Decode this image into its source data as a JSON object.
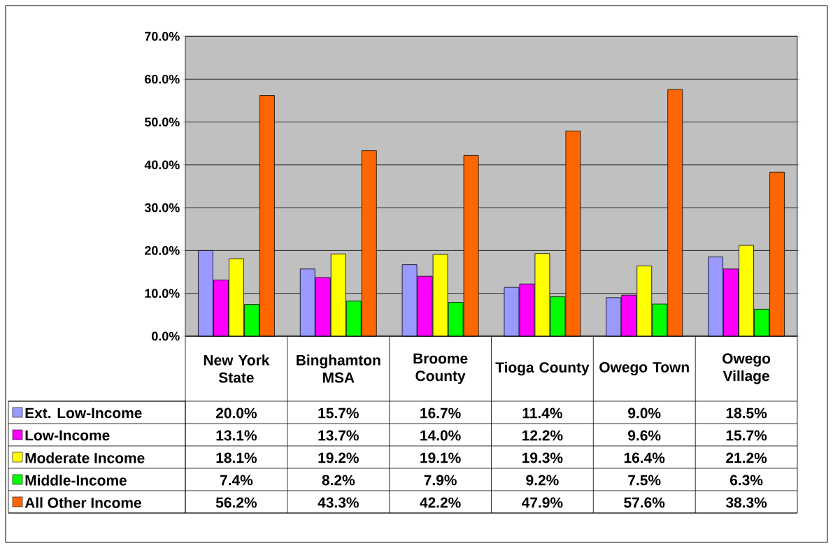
{
  "chart_data": {
    "type": "bar",
    "categories": [
      "New York State",
      "Binghamton MSA",
      "Broome County",
      "Tioga County",
      "Owego Town",
      "Owego Village"
    ],
    "series": [
      {
        "name": "Ext. Low-Income",
        "color": "#9999ff",
        "values": [
          20.0,
          15.7,
          16.7,
          11.4,
          9.0,
          18.5
        ],
        "value_labels": [
          "20.0%",
          "15.7%",
          "16.7%",
          "11.4%",
          "9.0%",
          "18.5%"
        ]
      },
      {
        "name": "Low-Income",
        "color": "#ff00ff",
        "values": [
          13.1,
          13.7,
          14.0,
          12.2,
          9.6,
          15.7
        ],
        "value_labels": [
          "13.1%",
          "13.7%",
          "14.0%",
          "12.2%",
          "9.6%",
          "15.7%"
        ]
      },
      {
        "name": "Moderate Income",
        "color": "#ffff00",
        "values": [
          18.1,
          19.2,
          19.1,
          19.3,
          16.4,
          21.2
        ],
        "value_labels": [
          "18.1%",
          "19.2%",
          "19.1%",
          "19.3%",
          "16.4%",
          "21.2%"
        ]
      },
      {
        "name": "Middle-Income",
        "color": "#00ff00",
        "values": [
          7.4,
          8.2,
          7.9,
          9.2,
          7.5,
          6.3
        ],
        "value_labels": [
          "7.4%",
          "8.2%",
          "7.9%",
          "9.2%",
          "7.5%",
          "6.3%"
        ]
      },
      {
        "name": "All Other Income",
        "color": "#ff6600",
        "values": [
          56.2,
          43.3,
          42.2,
          47.9,
          57.6,
          38.3
        ],
        "value_labels": [
          "56.2%",
          "43.3%",
          "42.2%",
          "47.9%",
          "57.6%",
          "38.3%"
        ]
      }
    ],
    "ylim": [
      0,
      70
    ],
    "yticks": [
      {
        "value": 0,
        "label": "0.0%"
      },
      {
        "value": 10,
        "label": "10.0%"
      },
      {
        "value": 20,
        "label": "20.0%"
      },
      {
        "value": 30,
        "label": "30.0%"
      },
      {
        "value": 40,
        "label": "40.0%"
      },
      {
        "value": 50,
        "label": "50.0%"
      },
      {
        "value": 60,
        "label": "60.0%"
      },
      {
        "value": 70,
        "label": "70.0%"
      }
    ],
    "grid": "y",
    "legend": "bottom"
  }
}
